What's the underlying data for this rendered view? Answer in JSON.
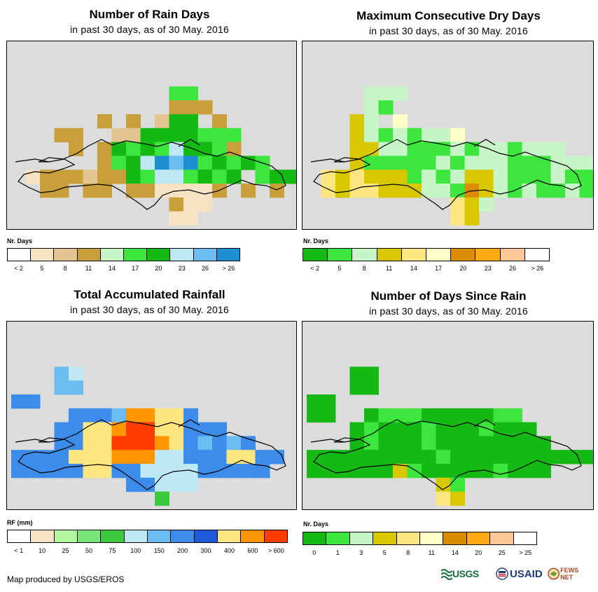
{
  "panels": [
    {
      "key": "rain_days",
      "title": "Number of Rain Days",
      "subtitle": "in past 30 days, as of 30 May. 2016",
      "legend_title": "Nr. Days",
      "legend_colors": [
        "#ffffff",
        "#f5e3c4",
        "#e3c592",
        "#c99f3a",
        "#c8f5c8",
        "#3ce63c",
        "#14b914",
        "#bfe8f5",
        "#6bbcf0",
        "#1e8fd2"
      ],
      "legend_labels": [
        "< 2",
        "5",
        "8",
        "11",
        "14",
        "17",
        "20",
        "23",
        "26",
        "> 26"
      ]
    },
    {
      "key": "dry_days",
      "title": "Maximum Consecutive Dry Days",
      "subtitle": "in past 30 days, as of 30 May. 2016",
      "legend_title": "Nr. Days",
      "legend_colors": [
        "#14b914",
        "#3ce63c",
        "#c8f5c8",
        "#d9c800",
        "#ffe680",
        "#ffffc8",
        "#dc8c00",
        "#ffaa14",
        "#ffc896",
        "#ffffff"
      ],
      "legend_labels": [
        "< 2",
        "5",
        "8",
        "11",
        "14",
        "17",
        "20",
        "23",
        "26",
        "> 26"
      ]
    },
    {
      "key": "rainfall",
      "title": "Total Accumulated Rainfall",
      "subtitle": "in past 30 days, as of 30 May. 2016",
      "legend_title": "RF (mm)",
      "legend_colors": [
        "#ffffff",
        "#f5e3c4",
        "#b4f5a0",
        "#78e678",
        "#3cc83c",
        "#bfe8f5",
        "#6bbcf0",
        "#3c8ceb",
        "#1e5adc",
        "#ffe680",
        "#ff9600",
        "#ff3c00"
      ],
      "legend_labels": [
        "< 1",
        "10",
        "25",
        "50",
        "75",
        "100",
        "150",
        "200",
        "300",
        "400",
        "600",
        "> 600"
      ]
    },
    {
      "key": "days_since",
      "title": "Number of Days Since Rain",
      "subtitle": "in past 30 days, as of 30 May. 2016",
      "legend_title": "Nr. Days",
      "legend_colors": [
        "#14b914",
        "#3ce63c",
        "#c8f5c8",
        "#d9c800",
        "#ffe680",
        "#ffffc8",
        "#dc8c00",
        "#ffaa14",
        "#ffc896",
        "#ffffff"
      ],
      "legend_labels": [
        "0",
        "1",
        "3",
        "5",
        "8",
        "11",
        "14",
        "20",
        "25",
        "> 25"
      ]
    }
  ],
  "credit": "Map produced by USGS/EROS",
  "logos": {
    "usgs": "USGS",
    "usaid": "USAID",
    "fews": "FEWS NET"
  }
}
